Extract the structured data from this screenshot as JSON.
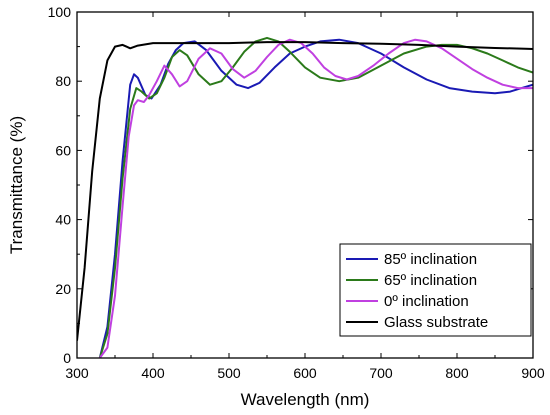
{
  "chart_data": {
    "type": "line",
    "title": "",
    "xlabel": "Wavelength (nm)",
    "ylabel": "Transmittance (%)",
    "xlim": [
      300,
      900
    ],
    "ylim": [
      0,
      100
    ],
    "x_ticks": [
      "300",
      "400",
      "500",
      "600",
      "700",
      "800",
      "900"
    ],
    "y_ticks": [
      "0",
      "20",
      "40",
      "60",
      "80",
      "100"
    ],
    "grid": false,
    "legend_position": "bottom-right",
    "series": [
      {
        "name": "85º inclination",
        "color": "#1a1ab4",
        "points": [
          [
            330,
            0
          ],
          [
            340,
            9
          ],
          [
            350,
            30
          ],
          [
            360,
            57
          ],
          [
            370,
            79
          ],
          [
            375,
            82
          ],
          [
            380,
            81
          ],
          [
            390,
            76
          ],
          [
            398,
            75
          ],
          [
            410,
            79
          ],
          [
            420,
            85
          ],
          [
            430,
            89
          ],
          [
            440,
            91
          ],
          [
            455,
            91.5
          ],
          [
            470,
            89
          ],
          [
            490,
            83
          ],
          [
            510,
            79
          ],
          [
            525,
            78
          ],
          [
            540,
            79.5
          ],
          [
            560,
            84
          ],
          [
            580,
            88
          ],
          [
            600,
            90
          ],
          [
            620,
            91.5
          ],
          [
            645,
            92
          ],
          [
            670,
            91
          ],
          [
            700,
            88
          ],
          [
            730,
            84
          ],
          [
            760,
            80.5
          ],
          [
            790,
            78
          ],
          [
            820,
            77
          ],
          [
            850,
            76.5
          ],
          [
            870,
            77
          ],
          [
            885,
            78
          ],
          [
            900,
            79
          ]
        ]
      },
      {
        "name": "65º inclination",
        "color": "#2b7a1a",
        "points": [
          [
            330,
            0
          ],
          [
            340,
            7
          ],
          [
            350,
            26
          ],
          [
            360,
            52
          ],
          [
            370,
            72
          ],
          [
            378,
            78
          ],
          [
            385,
            77
          ],
          [
            395,
            75
          ],
          [
            405,
            76.5
          ],
          [
            415,
            81
          ],
          [
            425,
            87
          ],
          [
            435,
            89
          ],
          [
            445,
            87.5
          ],
          [
            460,
            82
          ],
          [
            475,
            79
          ],
          [
            490,
            80
          ],
          [
            505,
            84
          ],
          [
            520,
            88.5
          ],
          [
            535,
            91.5
          ],
          [
            550,
            92.5
          ],
          [
            565,
            91.5
          ],
          [
            580,
            88.5
          ],
          [
            600,
            84
          ],
          [
            620,
            81
          ],
          [
            645,
            80
          ],
          [
            670,
            81
          ],
          [
            700,
            84.5
          ],
          [
            730,
            88
          ],
          [
            760,
            90
          ],
          [
            780,
            90.5
          ],
          [
            800,
            90.5
          ],
          [
            820,
            89.5
          ],
          [
            840,
            88
          ],
          [
            860,
            86
          ],
          [
            880,
            84
          ],
          [
            900,
            82.5
          ]
        ]
      },
      {
        "name": "0º inclination",
        "color": "#c040e0",
        "points": [
          [
            330,
            0
          ],
          [
            340,
            3
          ],
          [
            350,
            18
          ],
          [
            360,
            44
          ],
          [
            368,
            64
          ],
          [
            375,
            73
          ],
          [
            380,
            74.5
          ],
          [
            388,
            74
          ],
          [
            395,
            76
          ],
          [
            405,
            80
          ],
          [
            415,
            84.5
          ],
          [
            425,
            82
          ],
          [
            435,
            78.5
          ],
          [
            445,
            80
          ],
          [
            460,
            86.5
          ],
          [
            475,
            89.5
          ],
          [
            490,
            88
          ],
          [
            505,
            83.5
          ],
          [
            520,
            81
          ],
          [
            535,
            83
          ],
          [
            550,
            87
          ],
          [
            565,
            90.5
          ],
          [
            580,
            92
          ],
          [
            595,
            91
          ],
          [
            610,
            88
          ],
          [
            625,
            84
          ],
          [
            640,
            81.5
          ],
          [
            655,
            80.5
          ],
          [
            670,
            81.5
          ],
          [
            690,
            84.5
          ],
          [
            710,
            88
          ],
          [
            730,
            91
          ],
          [
            745,
            92
          ],
          [
            760,
            91.5
          ],
          [
            780,
            89.5
          ],
          [
            800,
            86.5
          ],
          [
            820,
            83.5
          ],
          [
            840,
            81
          ],
          [
            860,
            79
          ],
          [
            880,
            78
          ],
          [
            900,
            78
          ]
        ]
      },
      {
        "name": "Glass substrate",
        "color": "#000000",
        "points": [
          [
            300,
            5
          ],
          [
            310,
            26
          ],
          [
            320,
            54
          ],
          [
            330,
            75
          ],
          [
            340,
            86
          ],
          [
            350,
            90
          ],
          [
            360,
            90.5
          ],
          [
            365,
            90
          ],
          [
            370,
            89.5
          ],
          [
            380,
            90.3
          ],
          [
            400,
            91
          ],
          [
            450,
            91
          ],
          [
            500,
            91
          ],
          [
            550,
            91.3
          ],
          [
            600,
            91.3
          ],
          [
            650,
            91
          ],
          [
            700,
            90.8
          ],
          [
            750,
            90.5
          ],
          [
            800,
            90
          ],
          [
            850,
            89.6
          ],
          [
            890,
            89.4
          ],
          [
            900,
            89.3
          ]
        ]
      }
    ]
  }
}
